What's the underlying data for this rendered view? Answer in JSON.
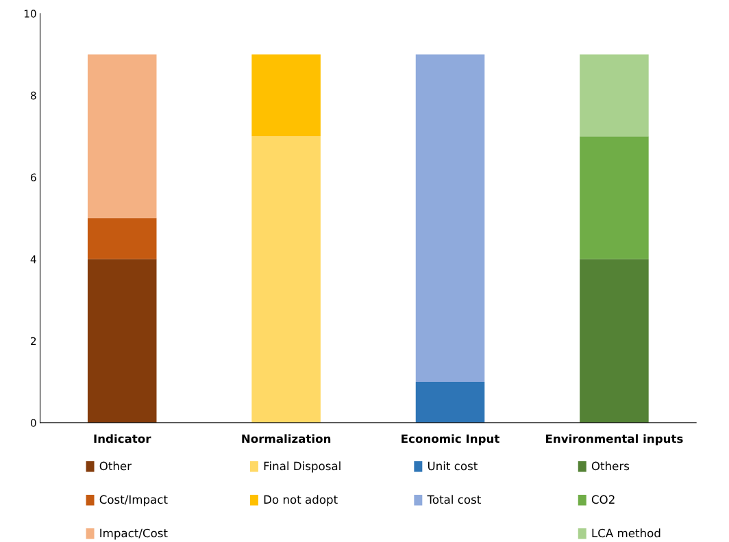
{
  "chart_data": {
    "type": "bar",
    "stacked": true,
    "categories": [
      "Indicator",
      "Normalization",
      "Economic Input",
      "Environmental inputs"
    ],
    "series": [
      {
        "name": "Other",
        "color": "#843c0c",
        "values": [
          4,
          null,
          null,
          null
        ]
      },
      {
        "name": "Cost/Impact",
        "color": "#c55a11",
        "values": [
          1,
          null,
          null,
          null
        ]
      },
      {
        "name": "Impact/Cost",
        "color": "#f4b183",
        "values": [
          4,
          null,
          null,
          null
        ]
      },
      {
        "name": "Final Disposal",
        "color": "#ffd966",
        "values": [
          null,
          7,
          null,
          null
        ]
      },
      {
        "name": "Do not adopt",
        "color": "#ffc000",
        "values": [
          null,
          2,
          null,
          null
        ]
      },
      {
        "name": "Unit cost",
        "color": "#2e75b6",
        "values": [
          null,
          null,
          1,
          null
        ]
      },
      {
        "name": "Total cost",
        "color": "#8faadc",
        "values": [
          null,
          null,
          8,
          null
        ]
      },
      {
        "name": "Others",
        "color": "#548235",
        "values": [
          null,
          null,
          null,
          4
        ]
      },
      {
        "name": "CO2",
        "color": "#70ad47",
        "values": [
          null,
          null,
          null,
          3
        ]
      },
      {
        "name": "LCA method",
        "color": "#a9d18e",
        "values": [
          null,
          null,
          null,
          2
        ]
      }
    ],
    "ylim": [
      0,
      10
    ],
    "yticks": [
      0,
      2,
      4,
      6,
      8,
      10
    ],
    "legend": "bottom"
  }
}
